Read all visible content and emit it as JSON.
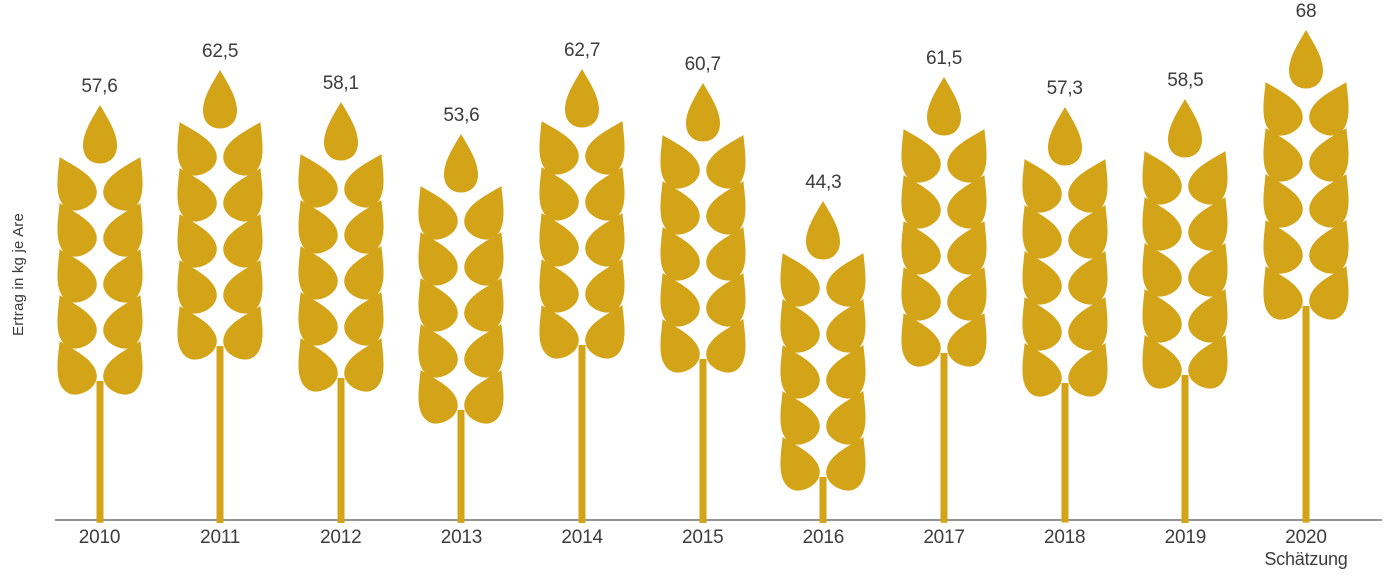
{
  "chart_data": {
    "type": "bar",
    "style": "pictogram-wheat-ears",
    "title": "",
    "ylabel": "Ertrag in kg je Are",
    "xlabel": "",
    "categories": [
      "2010",
      "2011",
      "2012",
      "2013",
      "2014",
      "2015",
      "2016",
      "2017",
      "2018",
      "2019",
      "2020"
    ],
    "values": [
      57.6,
      62.5,
      58.1,
      53.6,
      62.7,
      60.7,
      44.3,
      61.5,
      57.3,
      58.5,
      68
    ],
    "value_labels": [
      "57,6",
      "62,5",
      "58,1",
      "53,6",
      "62,7",
      "60,7",
      "44,3",
      "61,5",
      "57,3",
      "58,5",
      "68"
    ],
    "category_sublabels": [
      "",
      "",
      "",
      "",
      "",
      "",
      "",
      "",
      "",
      "",
      "Schätzung"
    ],
    "ylim": [
      0,
      72
    ],
    "grid": false,
    "legend": null,
    "colors": {
      "wheat": "#D3A318",
      "axis": "#949494",
      "text": "#3C3C3C"
    }
  }
}
